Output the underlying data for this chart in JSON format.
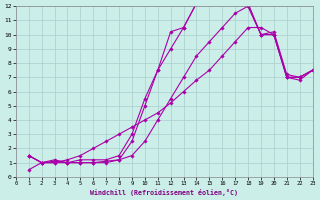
{
  "xlabel": "Windchill (Refroidissement éolien,°C)",
  "bg_color": "#cceee8",
  "grid_color": "#aacccc",
  "line_color": "#aa00aa",
  "xlim": [
    0,
    23
  ],
  "ylim": [
    0,
    12
  ],
  "xticks": [
    0,
    1,
    2,
    3,
    4,
    5,
    6,
    7,
    8,
    9,
    10,
    11,
    12,
    13,
    14,
    15,
    16,
    17,
    18,
    19,
    20,
    21,
    22,
    23
  ],
  "yticks": [
    0,
    1,
    2,
    3,
    4,
    5,
    6,
    7,
    8,
    9,
    10,
    11,
    12
  ],
  "lines": [
    {
      "x": [
        1,
        2,
        3,
        4,
        5,
        6,
        7,
        8,
        9,
        10,
        11,
        12,
        13,
        14,
        15,
        16,
        17,
        18,
        19,
        20,
        21,
        22,
        23
      ],
      "y": [
        1.5,
        1.0,
        1.0,
        1.0,
        1.0,
        1.0,
        1.0,
        1.2,
        2.5,
        5.0,
        7.5,
        10.2,
        10.5,
        12.2,
        12.2,
        12.2,
        12.2,
        12.2,
        10.0,
        10.0,
        7.0,
        7.0,
        7.5
      ]
    },
    {
      "x": [
        1,
        2,
        3,
        4,
        5,
        6,
        7,
        8,
        9,
        10,
        11,
        12,
        13,
        14,
        15,
        16,
        17,
        18,
        19,
        20,
        21,
        22,
        23
      ],
      "y": [
        1.5,
        1.0,
        1.2,
        1.0,
        1.2,
        1.2,
        1.2,
        1.5,
        3.0,
        5.5,
        7.5,
        9.0,
        10.5,
        12.2,
        12.2,
        12.2,
        12.2,
        12.0,
        10.0,
        10.2,
        7.2,
        7.0,
        7.5
      ]
    },
    {
      "x": [
        1,
        2,
        3,
        4,
        5,
        6,
        7,
        8,
        9,
        10,
        11,
        12,
        13,
        14,
        15,
        16,
        17,
        18,
        19,
        20,
        21,
        22,
        23
      ],
      "y": [
        1.5,
        1.0,
        1.1,
        1.0,
        1.0,
        1.0,
        1.1,
        1.2,
        1.5,
        2.5,
        4.0,
        5.5,
        7.0,
        8.5,
        9.5,
        10.5,
        11.5,
        12.0,
        10.0,
        10.0,
        7.0,
        7.0,
        7.5
      ]
    },
    {
      "x": [
        1,
        2,
        3,
        4,
        5,
        6,
        7,
        8,
        9,
        10,
        11,
        12,
        13,
        14,
        15,
        16,
        17,
        18,
        19,
        20,
        21,
        22,
        23
      ],
      "y": [
        0.5,
        1.0,
        1.0,
        1.2,
        1.5,
        2.0,
        2.5,
        3.0,
        3.5,
        4.0,
        4.5,
        5.2,
        6.0,
        6.8,
        7.5,
        8.5,
        9.5,
        10.5,
        10.5,
        10.0,
        7.0,
        6.8,
        7.5
      ]
    }
  ]
}
